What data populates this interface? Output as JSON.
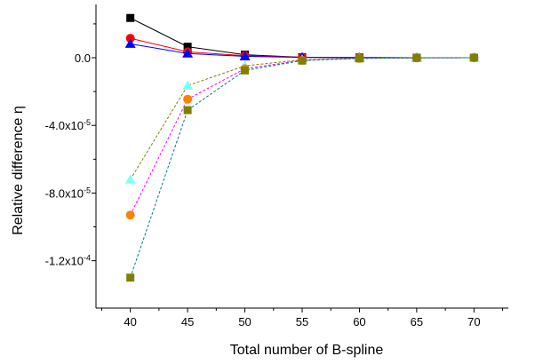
{
  "chart_data": {
    "type": "line",
    "title": "",
    "xlabel": "Total number of B-spline",
    "ylabel": "Relative difference η",
    "xlim": [
      37,
      73
    ],
    "ylim": [
      -0.000148,
      3.15e-05
    ],
    "x_ticks": [
      40,
      45,
      50,
      55,
      60,
      65,
      70
    ],
    "x_tick_labels": [
      "40",
      "45",
      "50",
      "55",
      "60",
      "65",
      "70"
    ],
    "y_ticks": [
      0.0,
      -4e-05,
      -8e-05,
      -0.00012
    ],
    "y_tick_labels": [
      "0.0",
      "-4.0x10-5",
      "-8.0x10-5",
      "-1.2x10-4"
    ],
    "grid": false,
    "legend": "none",
    "x": [
      40,
      45,
      50,
      55,
      60,
      65,
      70
    ],
    "series": [
      {
        "values": [
          2.35e-05,
          6.5e-06,
          1.8e-06,
          3e-07,
          1e-07,
          0.0,
          0.0
        ],
        "color": "#000000",
        "marker": "square",
        "dash": "solid"
      },
      {
        "values": [
          1.15e-05,
          3.5e-06,
          1.2e-06,
          3e-07,
          1e-07,
          0.0,
          0.0
        ],
        "color": "#ff0000",
        "marker": "circle",
        "dash": "solid"
      },
      {
        "values": [
          8.2e-06,
          2.5e-06,
          8e-07,
          2e-07,
          1e-07,
          0.0,
          0.0
        ],
        "color": "#0000ff",
        "marker": "triangle",
        "dash": "solid"
      },
      {
        "values": [
          -7.2e-05,
          -1.65e-05,
          -4.8e-06,
          -1.2e-06,
          -3e-07,
          -1e-07,
          0.0
        ],
        "color": "#80ffff",
        "lineColor": "#808000",
        "marker": "triangle",
        "dash": "dashed"
      },
      {
        "values": [
          -9.3e-05,
          -2.45e-05,
          -6.5e-06,
          -1.5e-06,
          -4e-07,
          -1e-07,
          0.0
        ],
        "color": "#ff8000",
        "lineColor": "#ff00ff",
        "marker": "circle",
        "dash": "dashed"
      },
      {
        "values": [
          -0.00013,
          -3.1e-05,
          -7.5e-06,
          -1.7e-06,
          -4e-07,
          -1e-07,
          0.0
        ],
        "color": "#808000",
        "lineColor": "#008080",
        "marker": "square",
        "dash": "dashed"
      }
    ]
  }
}
